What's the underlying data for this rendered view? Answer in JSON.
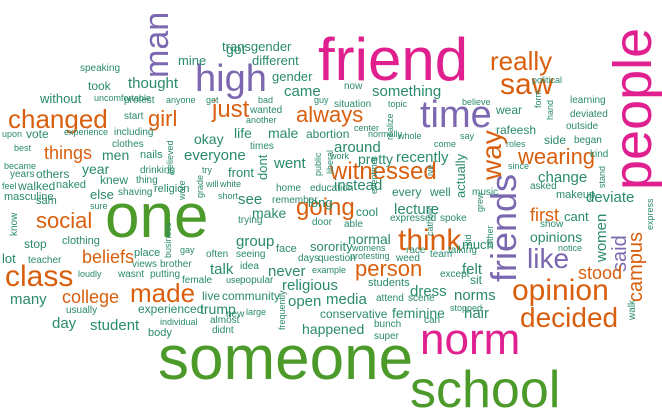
{
  "colors": {
    "green": "#4c9a2a",
    "orange": "#d95f0e",
    "purple": "#7b68b0",
    "pink": "#e0208f",
    "teal": "#2a8a6e"
  },
  "words": [
    {
      "text": "someone",
      "color": "pink"
    },
    {
      "text": "school",
      "color": "green"
    },
    {
      "text": "one",
      "color": "green"
    },
    {
      "text": "friend",
      "color": "pink"
    },
    {
      "text": "people",
      "color": "pink"
    },
    {
      "text": "norm",
      "color": "pink"
    },
    {
      "text": "high",
      "color": "purple"
    },
    {
      "text": "time",
      "color": "purple"
    },
    {
      "text": "friends",
      "color": "purple"
    },
    {
      "text": "man",
      "color": "purple"
    },
    {
      "text": "saw",
      "color": "orange"
    },
    {
      "text": "really",
      "color": "orange"
    },
    {
      "text": "changed",
      "color": "orange"
    },
    {
      "text": "class",
      "color": "orange"
    },
    {
      "text": "think",
      "color": "orange"
    },
    {
      "text": "opinion",
      "color": "orange"
    },
    {
      "text": "decided",
      "color": "orange"
    },
    {
      "text": "made",
      "color": "orange"
    },
    {
      "text": "like",
      "color": "purple"
    },
    {
      "text": "way",
      "color": "orange"
    },
    {
      "text": "going",
      "color": "orange"
    },
    {
      "text": "witnessed",
      "color": "orange"
    },
    {
      "text": "always",
      "color": "orange"
    },
    {
      "text": "wearing",
      "color": "orange"
    },
    {
      "text": "just",
      "color": "orange"
    },
    {
      "text": "girl",
      "color": "orange"
    },
    {
      "text": "person",
      "color": "orange"
    },
    {
      "text": "social",
      "color": "orange"
    },
    {
      "text": "college",
      "color": "orange"
    },
    {
      "text": "campus",
      "color": "orange"
    },
    {
      "text": "said",
      "color": "purple"
    },
    {
      "text": "stood",
      "color": "orange"
    },
    {
      "text": "first",
      "color": "orange"
    },
    {
      "text": "things",
      "color": "orange"
    },
    {
      "text": "beliefs",
      "color": "orange"
    },
    {
      "text": "thought",
      "color": "teal"
    },
    {
      "text": "something",
      "color": "teal"
    },
    {
      "text": "around",
      "color": "teal"
    },
    {
      "text": "came",
      "color": "teal"
    },
    {
      "text": "student",
      "color": "teal"
    },
    {
      "text": "many",
      "color": "teal"
    },
    {
      "text": "day",
      "color": "teal"
    },
    {
      "text": "felt",
      "color": "teal"
    },
    {
      "text": "norms",
      "color": "teal"
    },
    {
      "text": "hair",
      "color": "teal"
    },
    {
      "text": "media",
      "color": "teal"
    },
    {
      "text": "open",
      "color": "teal"
    },
    {
      "text": "religious",
      "color": "teal"
    },
    {
      "text": "group",
      "color": "teal"
    },
    {
      "text": "talk",
      "color": "teal"
    },
    {
      "text": "never",
      "color": "teal"
    },
    {
      "text": "instead",
      "color": "teal"
    },
    {
      "text": "normal",
      "color": "teal"
    },
    {
      "text": "lecture",
      "color": "teal"
    },
    {
      "text": "recently",
      "color": "teal"
    },
    {
      "text": "pretty",
      "color": "teal"
    },
    {
      "text": "change",
      "color": "teal"
    },
    {
      "text": "dress",
      "color": "teal"
    },
    {
      "text": "women",
      "color": "teal"
    },
    {
      "text": "everyone",
      "color": "teal"
    },
    {
      "text": "went",
      "color": "teal"
    },
    {
      "text": "male",
      "color": "teal"
    },
    {
      "text": "life",
      "color": "teal"
    },
    {
      "text": "okay",
      "color": "teal"
    },
    {
      "text": "see",
      "color": "teal"
    },
    {
      "text": "make",
      "color": "teal"
    },
    {
      "text": "year",
      "color": "teal"
    },
    {
      "text": "men",
      "color": "teal"
    },
    {
      "text": "happened",
      "color": "teal"
    },
    {
      "text": "feminine",
      "color": "teal"
    },
    {
      "text": "live",
      "color": "teal"
    },
    {
      "text": "community",
      "color": "teal"
    },
    {
      "text": "experienced",
      "color": "teal"
    },
    {
      "text": "trump",
      "color": "teal"
    },
    {
      "text": "conservative",
      "color": "teal"
    },
    {
      "text": "got",
      "color": "teal"
    },
    {
      "text": "sorority",
      "color": "teal"
    },
    {
      "text": "opinions",
      "color": "teal"
    },
    {
      "text": "deviate",
      "color": "teal"
    },
    {
      "text": "cant",
      "color": "teal"
    },
    {
      "text": "different",
      "color": "teal"
    },
    {
      "text": "transgender",
      "color": "teal"
    },
    {
      "text": "mine",
      "color": "teal"
    },
    {
      "text": "gender",
      "color": "teal"
    },
    {
      "text": "without",
      "color": "teal"
    },
    {
      "text": "took",
      "color": "teal"
    },
    {
      "text": "others",
      "color": "teal"
    },
    {
      "text": "walked",
      "color": "teal"
    },
    {
      "text": "naked",
      "color": "teal"
    },
    {
      "text": "masculine",
      "color": "teal"
    },
    {
      "text": "sam",
      "color": "teal"
    },
    {
      "text": "stop",
      "color": "teal"
    },
    {
      "text": "clothing",
      "color": "teal"
    },
    {
      "text": "lot",
      "color": "teal"
    },
    {
      "text": "knew",
      "color": "teal"
    },
    {
      "text": "else",
      "color": "teal"
    },
    {
      "text": "front",
      "color": "teal"
    },
    {
      "text": "long",
      "color": "teal"
    },
    {
      "text": "wear",
      "color": "teal"
    },
    {
      "text": "side",
      "color": "teal"
    },
    {
      "text": "sit",
      "color": "teal"
    },
    {
      "text": "much",
      "color": "teal"
    },
    {
      "text": "actually",
      "color": "teal"
    },
    {
      "text": "every",
      "color": "teal"
    },
    {
      "text": "well",
      "color": "teal"
    },
    {
      "text": "rafeesh",
      "color": "teal"
    },
    {
      "text": "abortion",
      "color": "teal"
    },
    {
      "text": "vote",
      "color": "teal"
    },
    {
      "text": "start",
      "color": "teal"
    },
    {
      "text": "speaking",
      "color": "teal"
    },
    {
      "text": "political",
      "color": "teal"
    },
    {
      "text": "learning",
      "color": "teal"
    },
    {
      "text": "deviated",
      "color": "teal"
    },
    {
      "text": "outside",
      "color": "teal"
    },
    {
      "text": "began",
      "color": "teal"
    },
    {
      "text": "kind",
      "color": "teal"
    },
    {
      "text": "makeup",
      "color": "teal"
    },
    {
      "text": "asked",
      "color": "teal"
    },
    {
      "text": "show",
      "color": "teal"
    },
    {
      "text": "students",
      "color": "teal"
    },
    {
      "text": "bunch",
      "color": "teal"
    },
    {
      "text": "super",
      "color": "teal"
    },
    {
      "text": "body",
      "color": "teal"
    },
    {
      "text": "didnt",
      "color": "teal"
    },
    {
      "text": "almost",
      "color": "teal"
    },
    {
      "text": "usually",
      "color": "teal"
    },
    {
      "text": "wasnt",
      "color": "teal"
    },
    {
      "text": "putting",
      "color": "teal"
    },
    {
      "text": "place",
      "color": "teal"
    },
    {
      "text": "views",
      "color": "teal"
    },
    {
      "text": "brother",
      "color": "teal"
    },
    {
      "text": "female",
      "color": "teal"
    },
    {
      "text": "often",
      "color": "teal"
    },
    {
      "text": "seeing",
      "color": "teal"
    },
    {
      "text": "idea",
      "color": "teal"
    },
    {
      "text": "face",
      "color": "teal"
    },
    {
      "text": "days",
      "color": "teal"
    },
    {
      "text": "question",
      "color": "teal"
    },
    {
      "text": "protesting",
      "color": "teal"
    },
    {
      "text": "weed",
      "color": "teal"
    },
    {
      "text": "team",
      "color": "teal"
    },
    {
      "text": "except",
      "color": "teal"
    },
    {
      "text": "attend",
      "color": "teal"
    },
    {
      "text": "scene",
      "color": "teal"
    },
    {
      "text": "stopped",
      "color": "teal"
    },
    {
      "text": "expressed",
      "color": "teal"
    },
    {
      "text": "spoke",
      "color": "teal"
    },
    {
      "text": "door",
      "color": "teal"
    },
    {
      "text": "able",
      "color": "teal"
    },
    {
      "text": "cool",
      "color": "teal"
    },
    {
      "text": "education",
      "color": "teal"
    },
    {
      "text": "home",
      "color": "teal"
    },
    {
      "text": "remember",
      "color": "teal"
    },
    {
      "text": "nails",
      "color": "teal"
    },
    {
      "text": "shaving",
      "color": "teal"
    },
    {
      "text": "drinking",
      "color": "teal"
    },
    {
      "text": "religion",
      "color": "teal"
    },
    {
      "text": "clothes",
      "color": "teal"
    },
    {
      "text": "including",
      "color": "teal"
    },
    {
      "text": "experience",
      "color": "teal"
    },
    {
      "text": "best",
      "color": "teal"
    },
    {
      "text": "upon",
      "color": "teal"
    },
    {
      "text": "became",
      "color": "teal"
    },
    {
      "text": "years",
      "color": "teal"
    },
    {
      "text": "feel",
      "color": "teal"
    },
    {
      "text": "know",
      "color": "teal"
    },
    {
      "text": "teacher",
      "color": "teal"
    },
    {
      "text": "loudly",
      "color": "teal"
    },
    {
      "text": "sure",
      "color": "teal"
    },
    {
      "text": "protest",
      "color": "teal"
    },
    {
      "text": "uncomfortable",
      "color": "teal"
    },
    {
      "text": "anyone",
      "color": "teal"
    },
    {
      "text": "bad",
      "color": "teal"
    },
    {
      "text": "wanted",
      "color": "teal"
    },
    {
      "text": "guy",
      "color": "teal"
    },
    {
      "text": "situation",
      "color": "teal"
    },
    {
      "text": "topic",
      "color": "teal"
    },
    {
      "text": "believe",
      "color": "teal"
    },
    {
      "text": "now",
      "color": "teal"
    },
    {
      "text": "center",
      "color": "teal"
    },
    {
      "text": "realize",
      "color": "teal"
    },
    {
      "text": "whole",
      "color": "teal"
    },
    {
      "text": "come",
      "color": "teal"
    },
    {
      "text": "say",
      "color": "teal"
    },
    {
      "text": "roles",
      "color": "teal"
    },
    {
      "text": "since",
      "color": "teal"
    },
    {
      "text": "music",
      "color": "teal"
    },
    {
      "text": "race",
      "color": "teal"
    },
    {
      "text": "talking",
      "color": "teal"
    },
    {
      "text": "catholic",
      "color": "teal"
    },
    {
      "text": "can",
      "color": "teal"
    },
    {
      "text": "example",
      "color": "teal"
    },
    {
      "text": "popular",
      "color": "teal"
    },
    {
      "text": "new",
      "color": "teal"
    },
    {
      "text": "large",
      "color": "teal"
    },
    {
      "text": "individual",
      "color": "teal"
    },
    {
      "text": "use",
      "color": "teal"
    },
    {
      "text": "white",
      "color": "teal"
    },
    {
      "text": "will",
      "color": "teal"
    },
    {
      "text": "short",
      "color": "teal"
    },
    {
      "text": "trying",
      "color": "teal"
    },
    {
      "text": "times",
      "color": "teal"
    },
    {
      "text": "another",
      "color": "teal"
    },
    {
      "text": "get",
      "color": "teal"
    },
    {
      "text": "thing",
      "color": "teal"
    },
    {
      "text": "work",
      "color": "teal"
    },
    {
      "text": "event",
      "color": "teal"
    },
    {
      "text": "womens",
      "color": "teal"
    },
    {
      "text": "dont",
      "color": "teal"
    },
    {
      "text": "public",
      "color": "teal"
    },
    {
      "text": "try",
      "color": "teal"
    },
    {
      "text": "grade",
      "color": "teal"
    },
    {
      "text": "gay",
      "color": "teal"
    },
    {
      "text": "business",
      "color": "teal"
    },
    {
      "text": "believed",
      "color": "teal"
    },
    {
      "text": "kid",
      "color": "teal"
    },
    {
      "text": "grew",
      "color": "teal"
    },
    {
      "text": "either",
      "color": "teal"
    },
    {
      "text": "ive",
      "color": "teal"
    },
    {
      "text": "walk",
      "color": "teal"
    },
    {
      "text": "express",
      "color": "teal"
    },
    {
      "text": "notice",
      "color": "teal"
    },
    {
      "text": "stand",
      "color": "teal"
    },
    {
      "text": "hand",
      "color": "teal"
    },
    {
      "text": "form",
      "color": "teal"
    },
    {
      "text": "frequently",
      "color": "teal"
    },
    {
      "text": "met",
      "color": "teal"
    },
    {
      "text": "liberal",
      "color": "teal"
    },
    {
      "text": "normally",
      "color": "teal"
    },
    {
      "text": "wore",
      "color": "teal"
    }
  ]
}
